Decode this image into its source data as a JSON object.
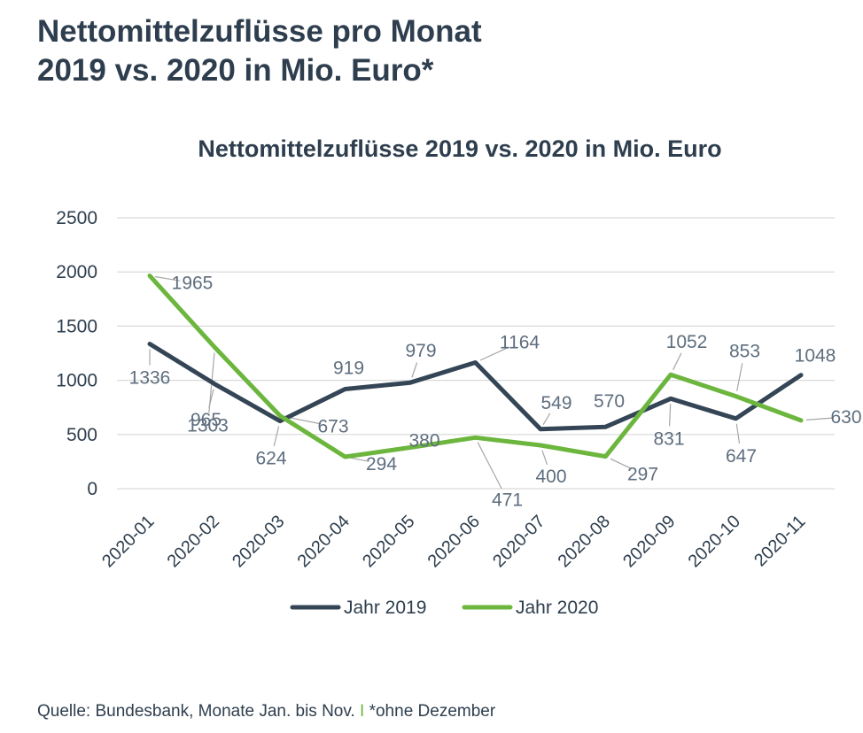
{
  "headline": {
    "line1": "Nettomittelzuflüsse pro Monat",
    "line2": "2019 vs. 2020 in Mio. Euro*"
  },
  "colors": {
    "series_2019": "#344555",
    "series_2020": "#6cb63e",
    "grid": "#d9d9d9",
    "text": "#2e3e4e",
    "label": "#5e6e7e",
    "leader": "#a6a6a6"
  },
  "chart_data": {
    "type": "line",
    "title": "Nettomittelzuflüsse 2019 vs. 2020 in Mio. Euro",
    "categories": [
      "2020-01",
      "2020-02",
      "2020-03",
      "2020-04",
      "2020-05",
      "2020-06",
      "2020-07",
      "2020-08",
      "2020-09",
      "2020-10",
      "2020-11"
    ],
    "yticks": [
      "0",
      "500",
      "1000",
      "1500",
      "2000",
      "2500"
    ],
    "ylim": [
      0,
      2500
    ],
    "grid": true,
    "legend_position": "bottom",
    "series": [
      {
        "name": "Jahr 2019",
        "values": [
          1336,
          965,
          624,
          919,
          979,
          1164,
          549,
          570,
          831,
          647,
          1048
        ]
      },
      {
        "name": "Jahr 2020",
        "values": [
          1965,
          1303,
          673,
          294,
          380,
          471,
          400,
          297,
          1052,
          853,
          630
        ]
      }
    ]
  },
  "source": {
    "text": "Quelle: Bundesbank, Monate Jan. bis Nov.",
    "separator": "I",
    "note": "*ohne Dezember"
  }
}
